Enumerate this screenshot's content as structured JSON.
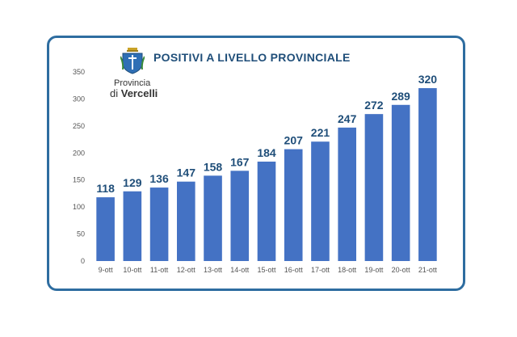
{
  "header": {
    "title": "POSITIVI A LIVELLO PROVINCIALE",
    "brand_line1": "Provincia",
    "brand_line2_prefix": "di",
    "brand_line2_name": "Vercelli"
  },
  "colors": {
    "bar": "#4472c4",
    "frame": "#2e6da0",
    "title": "#1f4e79",
    "data_label": "#1f4e79",
    "axis_text": "#555555"
  },
  "chart_data": {
    "type": "bar",
    "title": "POSITIVI A LIVELLO PROVINCIALE",
    "xlabel": "",
    "ylabel": "",
    "categories": [
      "9-ott",
      "10-ott",
      "11-ott",
      "12-ott",
      "13-ott",
      "14-ott",
      "15-ott",
      "16-ott",
      "17-ott",
      "18-ott",
      "19-ott",
      "20-ott",
      "21-ott"
    ],
    "values": [
      118,
      129,
      136,
      147,
      158,
      167,
      184,
      207,
      221,
      247,
      272,
      289,
      320
    ],
    "ylim": [
      0,
      350
    ],
    "yticks": [
      0,
      50,
      100,
      150,
      200,
      250,
      300,
      350
    ],
    "grid": false,
    "legend": "none"
  }
}
